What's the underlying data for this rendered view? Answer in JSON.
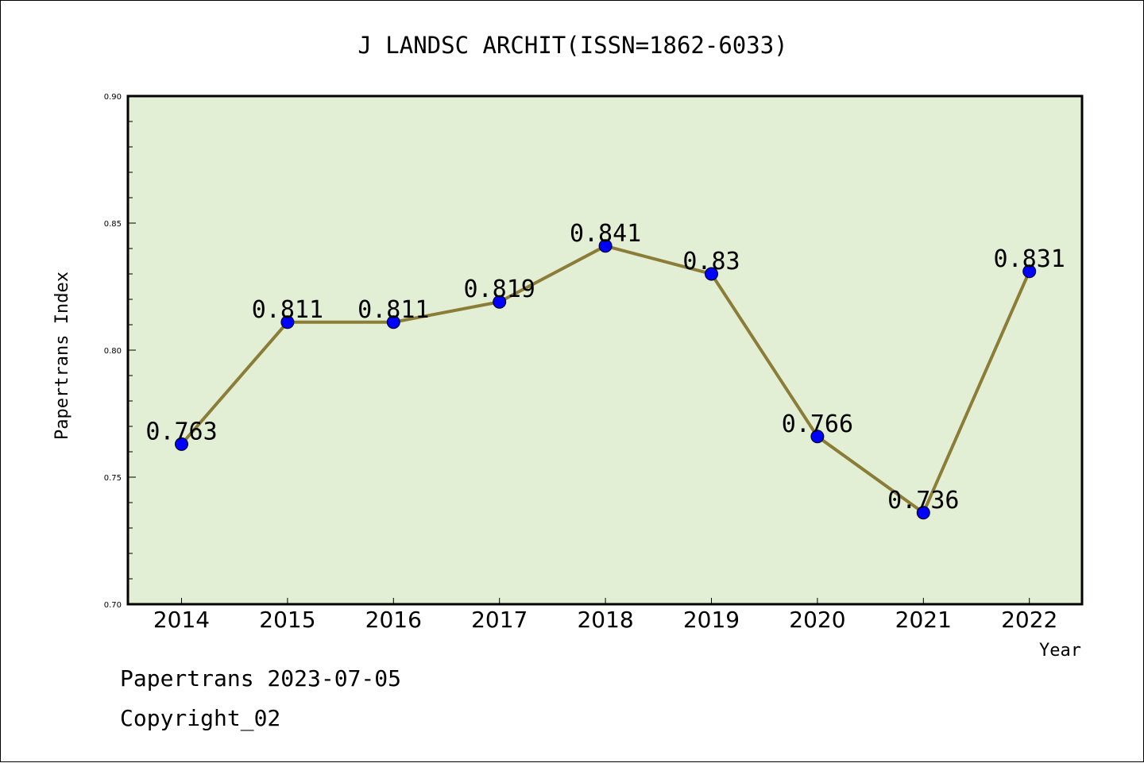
{
  "chart_data": {
    "type": "line",
    "title": "J LANDSC ARCHIT(ISSN=1862-6033)",
    "xlabel": "Year",
    "ylabel": "Papertrans Index",
    "categories": [
      "2014",
      "2015",
      "2016",
      "2017",
      "2018",
      "2019",
      "2020",
      "2021",
      "2022"
    ],
    "values": [
      0.763,
      0.811,
      0.811,
      0.819,
      0.841,
      0.83,
      0.766,
      0.736,
      0.831
    ],
    "data_labels": [
      "0.763",
      "0.811",
      "0.811",
      "0.819",
      "0.841",
      "0.83",
      "0.766",
      "0.736",
      "0.831"
    ],
    "ylim": [
      0.7,
      0.9
    ],
    "yticks": [
      "0.70",
      "0.75",
      "0.80",
      "0.85",
      "0.90"
    ],
    "grid": false,
    "colors": {
      "plot_background": "#e2efd4",
      "line": "#8b7d37",
      "marker": "#0000ff"
    }
  },
  "footer": {
    "line1": "Papertrans 2023-07-05",
    "line2": "Copyright_02"
  }
}
